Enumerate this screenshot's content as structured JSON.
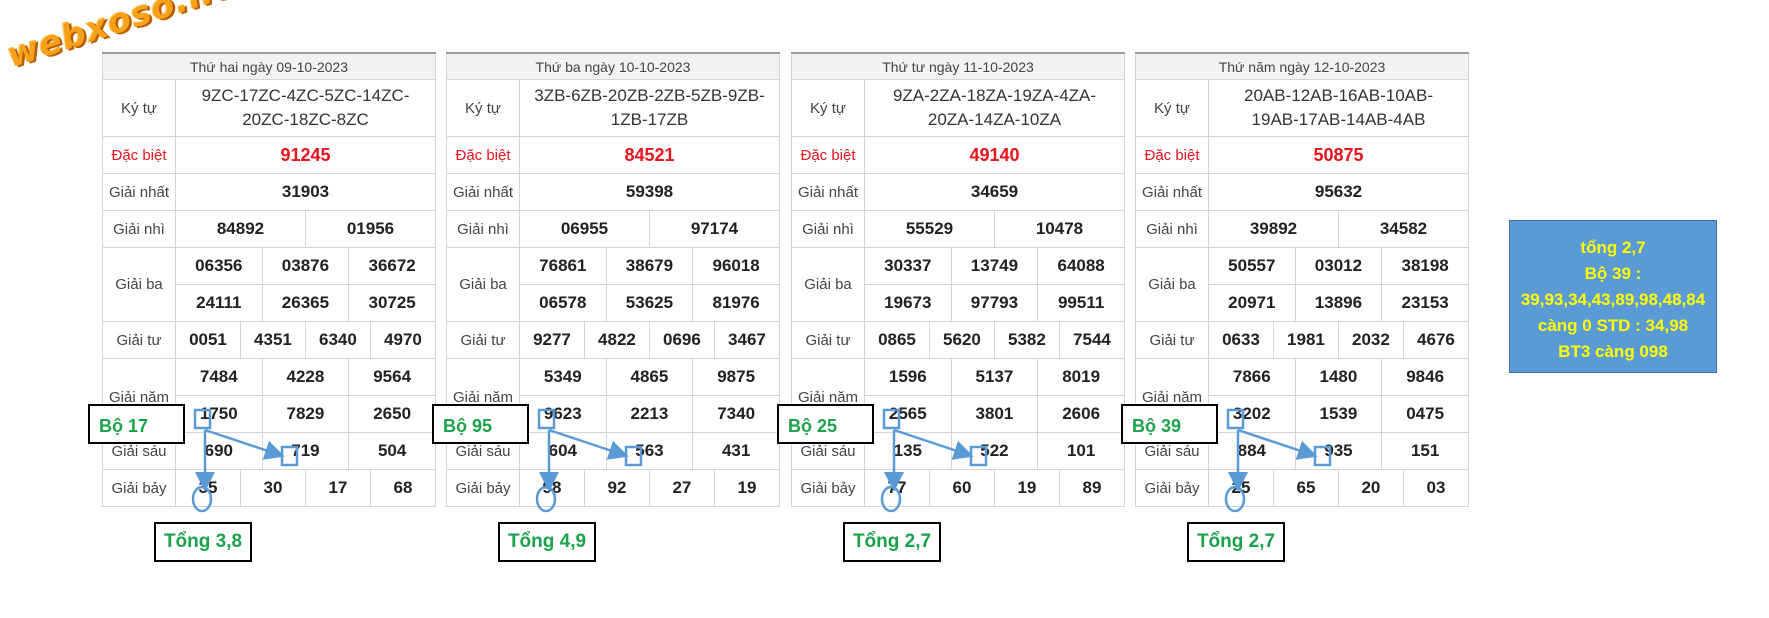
{
  "logo": {
    "text": "webxoso.net"
  },
  "labels": {
    "ky_tu": "Ký tự",
    "dac_biet": "Đặc biệt",
    "giai_nhat": "Giải nhất",
    "giai_nhi": "Giải nhì",
    "giai_ba": "Giải ba",
    "giai_tu": "Giải tư",
    "giai_nam": "Giải năm",
    "giai_sau": "Giải sáu",
    "giai_bay": "Giải bảy"
  },
  "panels": [
    {
      "date": "Thứ hai ngày 09-10-2023",
      "ky_tu_line1": "9ZC-17ZC-4ZC-5ZC-14ZC-",
      "ky_tu_line2": "20ZC-18ZC-8ZC",
      "dac_biet": "91245",
      "giai_nhat": "31903",
      "giai_nhi": [
        "84892",
        "01956"
      ],
      "giai_ba": [
        "06356",
        "03876",
        "36672",
        "24111",
        "26365",
        "30725"
      ],
      "giai_tu": [
        "0051",
        "4351",
        "6340",
        "4970"
      ],
      "giai_nam": [
        "7484",
        "4228",
        "9564",
        "1750",
        "7829",
        "2650"
      ],
      "giai_sau": [
        "690",
        "719",
        "504"
      ],
      "giai_bay": [
        "35",
        "30",
        "17",
        "68"
      ],
      "bo": "Bộ 17",
      "tong": "Tổng 3,8"
    },
    {
      "date": "Thứ ba ngày 10-10-2023",
      "ky_tu_line1": "3ZB-6ZB-20ZB-2ZB-5ZB-9ZB-",
      "ky_tu_line2": "1ZB-17ZB",
      "dac_biet": "84521",
      "giai_nhat": "59398",
      "giai_nhi": [
        "06955",
        "97174"
      ],
      "giai_ba": [
        "76861",
        "38679",
        "96018",
        "06578",
        "53625",
        "81976"
      ],
      "giai_tu": [
        "9277",
        "4822",
        "0696",
        "3467"
      ],
      "giai_nam": [
        "5349",
        "4865",
        "9875",
        "9623",
        "2213",
        "7340"
      ],
      "giai_sau": [
        "604",
        "563",
        "431"
      ],
      "giai_bay": [
        "98",
        "92",
        "27",
        "19"
      ],
      "bo": "Bộ 95",
      "tong": "Tổng 4,9"
    },
    {
      "date": "Thứ tư ngày 11-10-2023",
      "ky_tu_line1": "9ZA-2ZA-18ZA-19ZA-4ZA-",
      "ky_tu_line2": "20ZA-14ZA-10ZA",
      "dac_biet": "49140",
      "giai_nhat": "34659",
      "giai_nhi": [
        "55529",
        "10478"
      ],
      "giai_ba": [
        "30337",
        "13749",
        "64088",
        "19673",
        "97793",
        "99511"
      ],
      "giai_tu": [
        "0865",
        "5620",
        "5382",
        "7544"
      ],
      "giai_nam": [
        "1596",
        "5137",
        "8019",
        "2565",
        "3801",
        "2606"
      ],
      "giai_sau": [
        "135",
        "522",
        "101"
      ],
      "giai_bay": [
        "77",
        "60",
        "19",
        "89"
      ],
      "bo": "Bộ 25",
      "tong": "Tổng 2,7"
    },
    {
      "date": "Thứ năm ngày 12-10-2023",
      "ky_tu_line1": "20AB-12AB-16AB-10AB-",
      "ky_tu_line2": "19AB-17AB-14AB-4AB",
      "dac_biet": "50875",
      "giai_nhat": "95632",
      "giai_nhi": [
        "39892",
        "34582"
      ],
      "giai_ba": [
        "50557",
        "03012",
        "38198",
        "20971",
        "13896",
        "23153"
      ],
      "giai_tu": [
        "0633",
        "1981",
        "2032",
        "4676"
      ],
      "giai_nam": [
        "7866",
        "1480",
        "9846",
        "3202",
        "1539",
        "0475"
      ],
      "giai_sau": [
        "884",
        "935",
        "151"
      ],
      "giai_bay": [
        "25",
        "65",
        "20",
        "03"
      ],
      "bo": "Bộ 39",
      "tong": "Tổng 2,7"
    }
  ],
  "summary": {
    "line1": "tổng 2,7",
    "line2": "Bộ 39 :",
    "line3": "39,93,34,43,89,98,48,84",
    "line4": "càng 0 STD : 34,98",
    "line5": "BT3 càng 098"
  },
  "colors": {
    "green": "#1aa34a",
    "red": "#e8141c",
    "annotation_blue": "#5b9bd5",
    "summary_text": "#ffff00"
  }
}
